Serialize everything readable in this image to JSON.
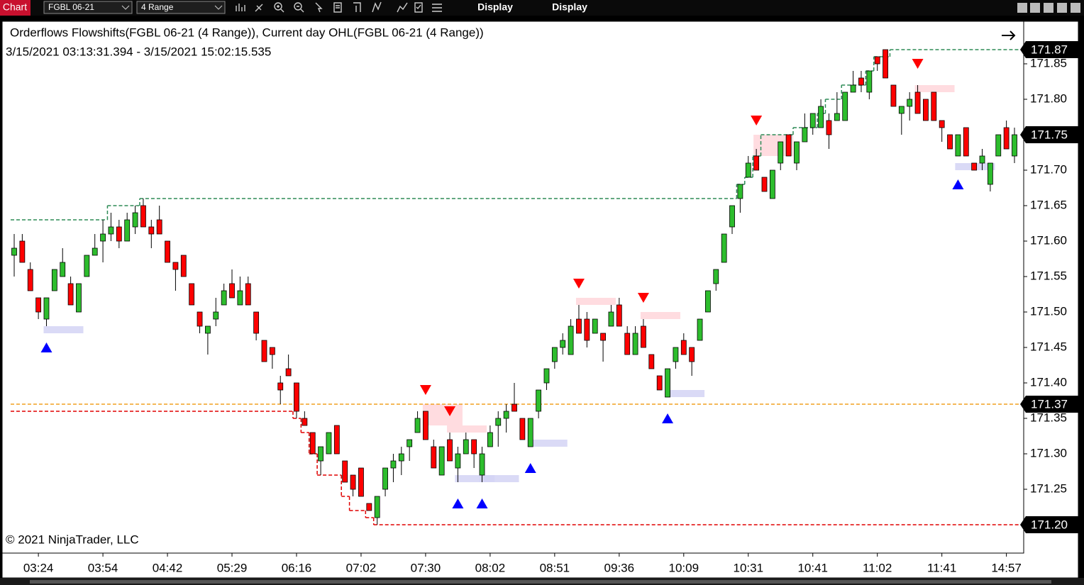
{
  "toolbar": {
    "tab": "Chart",
    "instrument": "FGBL 06-21",
    "period": "4 Range",
    "buttons": [
      "Display",
      "Display"
    ]
  },
  "chart_data": {
    "type": "candlestick",
    "title": "Orderflows Flowshifts(FGBL 06-21 (4 Range)), Current day OHL(FGBL 06-21 (4 Range))",
    "subtitle": "3/15/2021 03:13:31.394 - 3/15/2021 15:02:15.535",
    "footer": "© 2021 NinjaTrader, LLC",
    "categories": [
      null,
      null,
      null,
      "03:24",
      null,
      null,
      null,
      null,
      null,
      null,
      null,
      "03:54",
      null,
      null,
      null,
      null,
      null,
      null,
      null,
      "04:42",
      null,
      null,
      null,
      null,
      null,
      null,
      null,
      "05:29",
      null,
      null,
      null,
      null,
      null,
      null,
      null,
      "06:16",
      null,
      null,
      null,
      null,
      null,
      null,
      null,
      "07:02",
      null,
      null,
      null,
      null,
      null,
      null,
      null,
      "07:30",
      null,
      null,
      null,
      null,
      null,
      null,
      null,
      "08:02",
      null,
      null,
      null,
      null,
      null,
      null,
      null,
      "08:51",
      null,
      null,
      null,
      null,
      null,
      null,
      null,
      "09:36",
      null,
      null,
      null,
      null,
      null,
      null,
      null,
      "10:09",
      null,
      null,
      null,
      null,
      null,
      null,
      null,
      "10:31",
      null,
      null,
      null,
      null,
      null,
      null,
      null,
      "10:41",
      null,
      null,
      null,
      null,
      null,
      null,
      null,
      "11:02",
      null,
      null,
      null,
      null,
      null,
      null,
      null,
      "11:41",
      null,
      null,
      null,
      null,
      null,
      null,
      null,
      "14:57",
      null
    ],
    "open": [
      171.58,
      171.6,
      171.56,
      171.52,
      171.49,
      171.53,
      171.55,
      171.54,
      171.5,
      171.55,
      171.58,
      171.6,
      171.61,
      171.62,
      171.6,
      171.62,
      171.65,
      171.62,
      171.63,
      171.6,
      171.57,
      171.58,
      171.54,
      171.5,
      171.47,
      171.49,
      171.51,
      171.54,
      171.51,
      171.54,
      171.5,
      171.46,
      171.45,
      171.4,
      171.42,
      171.4,
      171.35,
      171.33,
      171.29,
      171.3,
      171.34,
      171.29,
      171.27,
      171.28,
      171.23,
      171.21,
      171.25,
      171.28,
      171.29,
      171.31,
      171.33,
      171.36,
      171.31,
      171.27,
      171.32,
      171.28,
      171.3,
      171.32,
      171.27,
      171.31,
      171.34,
      171.35,
      171.37,
      171.35,
      171.31,
      171.36,
      171.4,
      171.43,
      171.45,
      171.44,
      171.49,
      171.49,
      171.47,
      171.47,
      171.48,
      171.51,
      171.47,
      171.44,
      171.48,
      171.44,
      171.41,
      171.38,
      171.43,
      171.46,
      171.45,
      171.46,
      171.5,
      171.54,
      171.57,
      171.62,
      171.66,
      171.69,
      171.72,
      171.69,
      171.66,
      171.71,
      171.75,
      171.71,
      171.74,
      171.76,
      171.76,
      171.77,
      171.77,
      171.77,
      171.81,
      171.83,
      171.81,
      171.86,
      171.87,
      171.82,
      171.78,
      171.79,
      171.81,
      171.8,
      171.81,
      171.77,
      171.75,
      171.72,
      171.76,
      171.71,
      171.71,
      171.68,
      171.72,
      171.76,
      171.72
    ],
    "high": [
      171.61,
      171.61,
      171.57,
      171.52,
      171.52,
      171.56,
      171.59,
      171.55,
      171.54,
      171.58,
      171.61,
      171.63,
      171.64,
      171.63,
      171.64,
      171.65,
      171.66,
      171.63,
      171.65,
      171.6,
      171.57,
      171.58,
      171.54,
      171.5,
      171.48,
      171.52,
      171.54,
      171.56,
      171.55,
      171.55,
      171.5,
      171.46,
      171.45,
      171.41,
      171.44,
      171.4,
      171.36,
      171.33,
      171.31,
      171.33,
      171.34,
      171.29,
      171.27,
      171.28,
      171.23,
      171.24,
      171.28,
      171.3,
      171.31,
      171.32,
      171.36,
      171.36,
      171.32,
      171.31,
      171.33,
      171.31,
      171.33,
      171.32,
      171.31,
      171.34,
      171.36,
      171.37,
      171.4,
      171.35,
      171.35,
      171.39,
      171.42,
      171.45,
      171.47,
      171.49,
      171.51,
      171.5,
      171.49,
      171.47,
      171.51,
      171.52,
      171.48,
      171.48,
      171.49,
      171.44,
      171.41,
      171.42,
      171.45,
      171.47,
      171.45,
      171.49,
      171.53,
      171.56,
      171.61,
      171.65,
      171.68,
      171.72,
      171.73,
      171.69,
      171.7,
      171.74,
      171.75,
      171.74,
      171.78,
      171.78,
      171.8,
      171.78,
      171.81,
      171.81,
      171.84,
      171.84,
      171.84,
      171.86,
      171.87,
      171.82,
      171.79,
      171.81,
      171.82,
      171.8,
      171.81,
      171.77,
      171.75,
      171.75,
      171.76,
      171.71,
      171.73,
      171.71,
      171.75,
      171.77,
      171.76
    ],
    "low": [
      171.55,
      171.57,
      171.53,
      171.49,
      171.48,
      171.53,
      171.55,
      171.51,
      171.5,
      171.55,
      171.58,
      171.57,
      171.6,
      171.59,
      171.6,
      171.61,
      171.62,
      171.59,
      171.61,
      171.57,
      171.53,
      171.55,
      171.51,
      171.47,
      171.44,
      171.48,
      171.51,
      171.52,
      171.51,
      171.51,
      171.46,
      171.43,
      171.42,
      171.37,
      171.41,
      171.35,
      171.34,
      171.3,
      171.27,
      171.3,
      171.3,
      171.26,
      171.24,
      171.24,
      171.22,
      171.2,
      171.24,
      171.26,
      171.27,
      171.29,
      171.33,
      171.32,
      171.28,
      171.27,
      171.29,
      171.26,
      171.3,
      171.28,
      171.26,
      171.31,
      171.31,
      171.33,
      171.36,
      171.32,
      171.31,
      171.35,
      171.39,
      171.42,
      171.44,
      171.44,
      171.47,
      171.45,
      171.47,
      171.43,
      171.48,
      171.48,
      171.44,
      171.44,
      171.45,
      171.42,
      171.39,
      171.38,
      171.42,
      171.44,
      171.41,
      171.46,
      171.5,
      171.53,
      171.57,
      171.61,
      171.64,
      171.69,
      171.7,
      171.67,
      171.66,
      171.7,
      171.72,
      171.7,
      171.74,
      171.75,
      171.76,
      171.73,
      171.77,
      171.77,
      171.81,
      171.81,
      171.8,
      171.84,
      171.83,
      171.79,
      171.75,
      171.77,
      171.78,
      171.77,
      171.77,
      171.74,
      171.73,
      171.72,
      171.72,
      171.7,
      171.7,
      171.67,
      171.72,
      171.73,
      171.71
    ],
    "close": [
      171.59,
      171.57,
      171.53,
      171.5,
      171.52,
      171.56,
      171.57,
      171.51,
      171.54,
      171.58,
      171.59,
      171.61,
      171.62,
      171.6,
      171.63,
      171.64,
      171.62,
      171.61,
      171.61,
      171.57,
      171.56,
      171.55,
      171.51,
      171.48,
      171.48,
      171.5,
      171.53,
      171.52,
      171.53,
      171.51,
      171.47,
      171.43,
      171.44,
      171.39,
      171.41,
      171.36,
      171.34,
      171.3,
      171.31,
      171.33,
      171.3,
      171.26,
      171.25,
      171.24,
      171.22,
      171.24,
      171.28,
      171.29,
      171.3,
      171.32,
      171.35,
      171.32,
      171.28,
      171.31,
      171.29,
      171.3,
      171.32,
      171.3,
      171.3,
      171.33,
      171.35,
      171.36,
      171.36,
      171.32,
      171.35,
      171.39,
      171.42,
      171.45,
      171.46,
      171.48,
      171.47,
      171.46,
      171.49,
      171.46,
      171.5,
      171.48,
      171.44,
      171.47,
      171.45,
      171.42,
      171.39,
      171.42,
      171.45,
      171.44,
      171.43,
      171.49,
      171.53,
      171.56,
      171.61,
      171.65,
      171.68,
      171.71,
      171.7,
      171.67,
      171.7,
      171.74,
      171.72,
      171.74,
      171.76,
      171.78,
      171.79,
      171.75,
      171.78,
      171.81,
      171.82,
      171.82,
      171.84,
      171.85,
      171.83,
      171.79,
      171.79,
      171.8,
      171.78,
      171.77,
      171.77,
      171.76,
      171.73,
      171.75,
      171.72,
      171.7,
      171.72,
      171.71,
      171.75,
      171.73,
      171.75
    ],
    "up_color": "#2dbd2d",
    "down_color": "#ff0000",
    "ylim": [
      171.16,
      171.91
    ],
    "yticks": [
      171.25,
      {
        "value": 171.3,
        "label": "171.30"
      },
      171.35,
      {
        "value": 171.4,
        "label": "171.40"
      },
      171.45,
      {
        "value": 171.5,
        "label": "171.50"
      },
      171.55,
      {
        "value": 171.6,
        "label": "171.60"
      },
      171.65,
      {
        "value": 171.7,
        "label": "171.70"
      },
      171.75,
      {
        "value": 171.8,
        "label": "171.80"
      },
      171.85
    ],
    "price_markers": [
      171.87,
      171.75,
      171.37,
      {
        "value": 171.2,
        "label": "171.20"
      }
    ],
    "grid": false,
    "session_high": {
      "x": [
        0,
        12,
        16,
        90,
        91,
        92,
        93,
        97,
        100,
        101,
        103,
        106,
        107,
        109
      ],
      "values": [
        171.63,
        171.65,
        171.66,
        171.68,
        171.69,
        171.72,
        171.75,
        171.76,
        171.78,
        171.8,
        171.82,
        171.84,
        171.86,
        171.87
      ],
      "color": "#2e8b57"
    },
    "session_low": {
      "x": [
        0,
        35,
        36,
        37,
        38,
        41,
        42,
        44,
        45
      ],
      "values": [
        171.36,
        171.35,
        171.33,
        171.3,
        171.27,
        171.24,
        171.22,
        171.21,
        171.2
      ],
      "color": "#e00000"
    },
    "session_open": {
      "value": 171.37,
      "color": "#f0a020"
    },
    "sell_signals": {
      "x": [
        51,
        54,
        70,
        78,
        92,
        112
      ],
      "values": [
        171.39,
        171.36,
        171.54,
        171.52,
        171.77,
        171.85
      ],
      "color": "#ff0000"
    },
    "buy_signals": {
      "x": [
        4,
        55,
        58,
        64,
        81,
        117
      ],
      "values": [
        171.45,
        171.23,
        171.23,
        171.28,
        171.35,
        171.68
      ],
      "color": "#0000ff"
    },
    "supply_zones": {
      "x": [
        51,
        54,
        70,
        78,
        92,
        112
      ],
      "top": [
        171.37,
        171.34,
        171.52,
        171.5,
        171.75,
        171.82
      ],
      "bottom": [
        171.34,
        171.33,
        171.51,
        171.49,
        171.72,
        171.81
      ],
      "color": "#ffd6da"
    },
    "demand_zones": {
      "x": [
        4,
        55,
        58,
        64,
        81,
        117
      ],
      "top": [
        171.48,
        171.27,
        171.27,
        171.32,
        171.39,
        171.71
      ],
      "bottom": [
        171.47,
        171.26,
        171.26,
        171.31,
        171.38,
        171.7
      ],
      "color": "#d4d4f4"
    }
  }
}
